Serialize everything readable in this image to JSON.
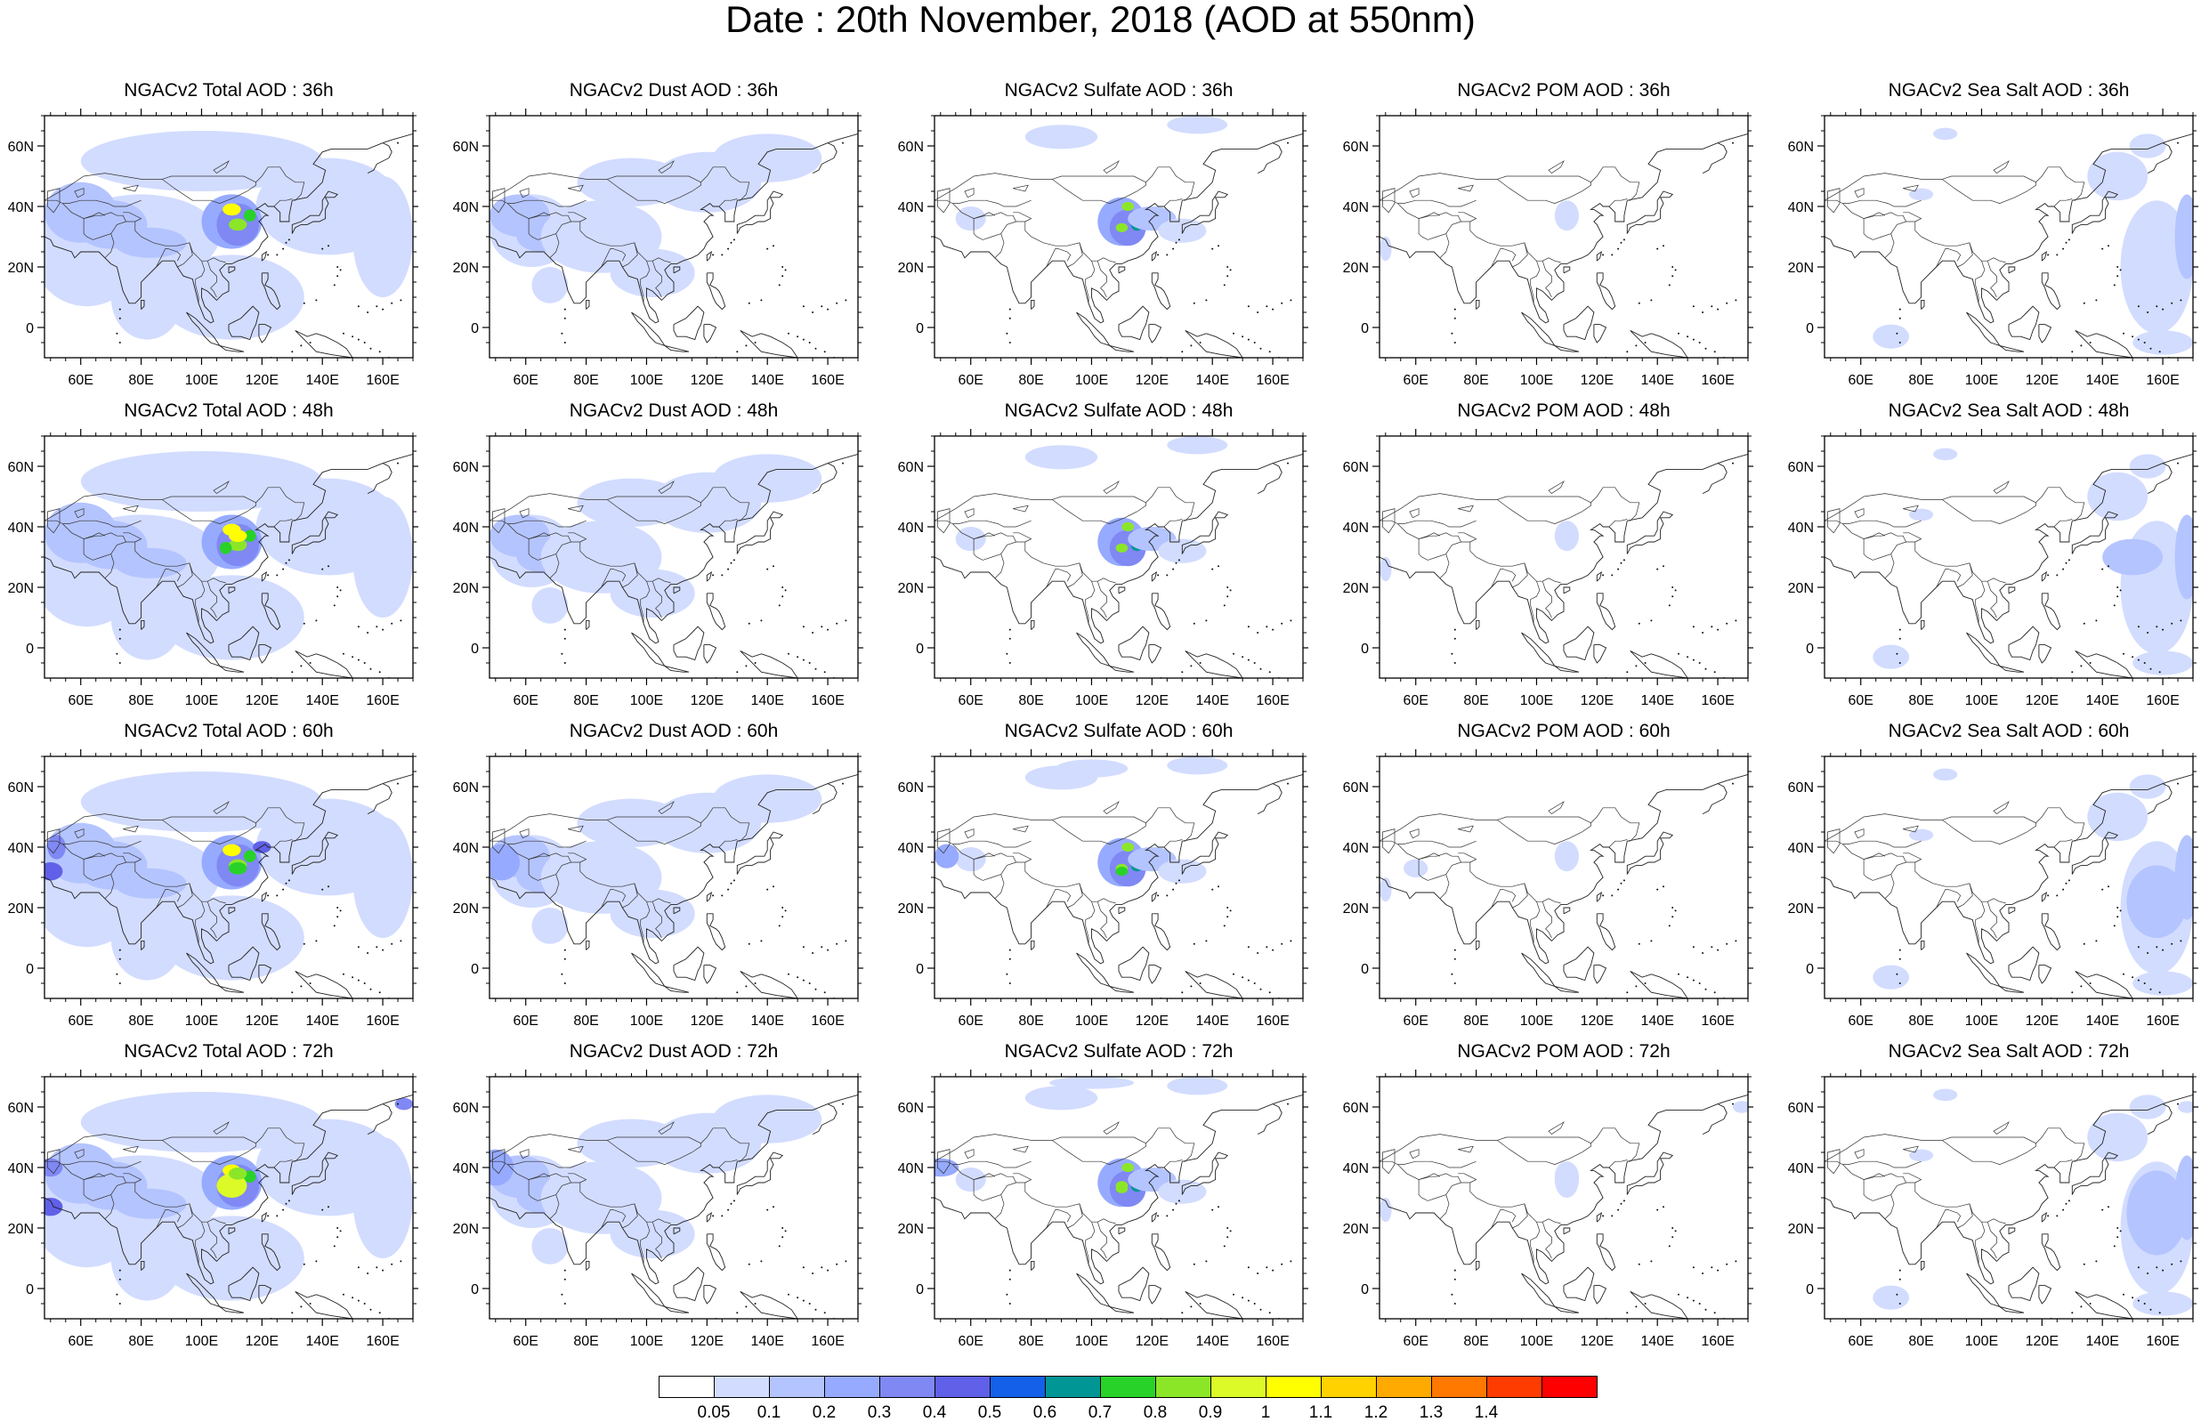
{
  "title": "Date : 20th November, 2018 (AOD at 550nm)",
  "axes": {
    "lon_ticks": [
      "60E",
      "80E",
      "100E",
      "120E",
      "140E",
      "160E"
    ],
    "lat_ticks": [
      "60N",
      "40N",
      "20N",
      "0"
    ]
  },
  "colorbar": {
    "colors": [
      "#ffffff",
      "#d2dcff",
      "#b4c4ff",
      "#96aaff",
      "#8088f4",
      "#6060e8",
      "#1460e8",
      "#009696",
      "#28d228",
      "#8ce628",
      "#dcfa28",
      "#ffff00",
      "#ffd200",
      "#ffaa00",
      "#ff7800",
      "#ff3c00",
      "#ff0000"
    ],
    "labels": [
      "0.05",
      "0.1",
      "0.2",
      "0.3",
      "0.4",
      "0.5",
      "0.6",
      "0.7",
      "0.8",
      "0.9",
      "1",
      "1.1",
      "1.2",
      "1.3",
      "1.4"
    ]
  },
  "rows": [
    {
      "forecast_hour": "36h",
      "panels": [
        {
          "title": "NGACv2 Total AOD : 36h",
          "species": "total"
        },
        {
          "title": "NGACv2 Dust AOD : 36h",
          "species": "dust"
        },
        {
          "title": "NGACv2 Sulfate AOD : 36h",
          "species": "sulfate"
        },
        {
          "title": "NGACv2 POM AOD : 36h",
          "species": "pom"
        },
        {
          "title": "NGACv2 Sea Salt AOD : 36h",
          "species": "seasalt"
        }
      ]
    },
    {
      "forecast_hour": "48h",
      "panels": [
        {
          "title": "NGACv2 Total AOD : 48h",
          "species": "total"
        },
        {
          "title": "NGACv2 Dust AOD : 48h",
          "species": "dust"
        },
        {
          "title": "NGACv2 Sulfate AOD : 48h",
          "species": "sulfate"
        },
        {
          "title": "NGACv2 POM AOD : 48h",
          "species": "pom"
        },
        {
          "title": "NGACv2 Sea Salt AOD : 48h",
          "species": "seasalt"
        }
      ]
    },
    {
      "forecast_hour": "60h",
      "panels": [
        {
          "title": "NGACv2 Total AOD : 60h",
          "species": "total"
        },
        {
          "title": "NGACv2 Dust AOD : 60h",
          "species": "dust"
        },
        {
          "title": "NGACv2 Sulfate AOD : 60h",
          "species": "sulfate"
        },
        {
          "title": "NGACv2 POM AOD : 60h",
          "species": "pom"
        },
        {
          "title": "NGACv2 Sea Salt AOD : 60h",
          "species": "seasalt"
        }
      ]
    },
    {
      "forecast_hour": "72h",
      "panels": [
        {
          "title": "NGACv2 Total AOD : 72h",
          "species": "total"
        },
        {
          "title": "NGACv2 Dust AOD : 72h",
          "species": "dust"
        },
        {
          "title": "NGACv2 Sulfate AOD : 72h",
          "species": "sulfate"
        },
        {
          "title": "NGACv2 POM AOD : 72h",
          "species": "pom"
        },
        {
          "title": "NGACv2 Sea Salt  AOD : 72h",
          "species": "seasalt"
        }
      ]
    }
  ]
}
